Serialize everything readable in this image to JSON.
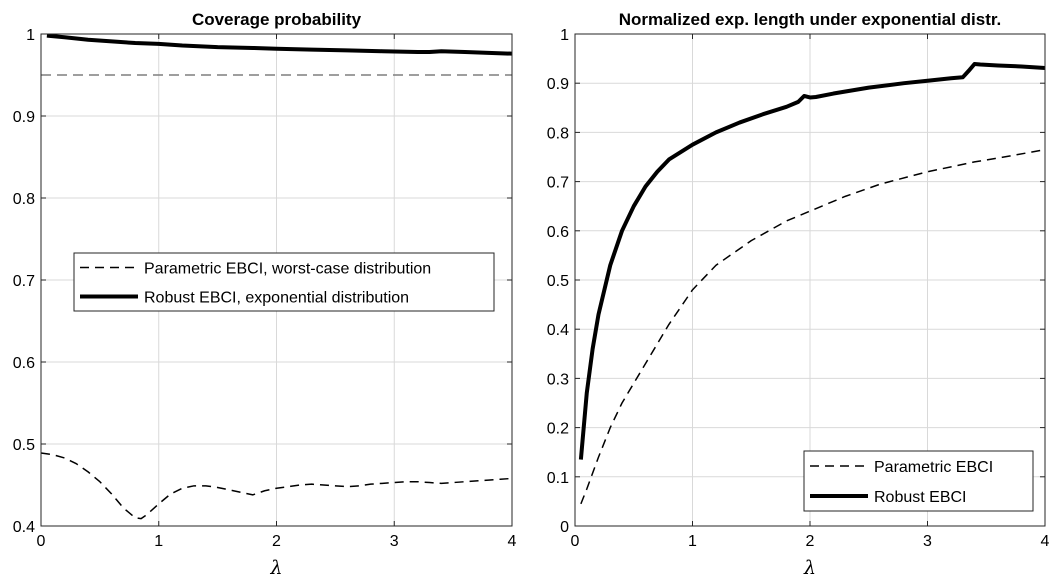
{
  "chart_data": [
    {
      "type": "line",
      "title": "Coverage probability",
      "xlabel": "λ",
      "ylabel": "",
      "xlim": [
        0,
        4
      ],
      "ylim": [
        0.4,
        1
      ],
      "xticks": [
        0,
        1,
        2,
        3,
        4
      ],
      "xtick_labels": [
        "0",
        "1",
        "2",
        "3",
        "4"
      ],
      "yticks": [
        0.4,
        0.5,
        0.6,
        0.7,
        0.8,
        0.9,
        1
      ],
      "ytick_labels": [
        "0.4",
        "0.5",
        "0.6",
        "0.7",
        "0.8",
        "0.9",
        "1"
      ],
      "grid": true,
      "legend_position": "center",
      "reference_line": {
        "y": 0.95,
        "style": "dashed",
        "color": "#7f7f7f"
      },
      "series": [
        {
          "name": "Parametric EBCI, worst-case distribution",
          "style": "dashed",
          "color": "#000000",
          "x": [
            0.0,
            0.1,
            0.2,
            0.3,
            0.4,
            0.5,
            0.6,
            0.7,
            0.8,
            0.85,
            0.9,
            1.0,
            1.1,
            1.2,
            1.3,
            1.4,
            1.5,
            1.6,
            1.7,
            1.8,
            1.9,
            2.0,
            2.1,
            2.2,
            2.3,
            2.4,
            2.5,
            2.6,
            2.7,
            2.8,
            2.9,
            3.0,
            3.1,
            3.2,
            3.3,
            3.4,
            3.5,
            3.6,
            3.7,
            3.8,
            3.9,
            4.0
          ],
          "y": [
            0.489,
            0.487,
            0.483,
            0.476,
            0.466,
            0.454,
            0.439,
            0.422,
            0.41,
            0.409,
            0.414,
            0.427,
            0.439,
            0.446,
            0.449,
            0.449,
            0.447,
            0.444,
            0.441,
            0.438,
            0.443,
            0.446,
            0.448,
            0.45,
            0.451,
            0.45,
            0.449,
            0.448,
            0.449,
            0.451,
            0.452,
            0.453,
            0.454,
            0.454,
            0.453,
            0.452,
            0.453,
            0.454,
            0.455,
            0.456,
            0.457,
            0.458
          ]
        },
        {
          "name": "Robust EBCI, exponential distribution",
          "style": "solid",
          "color": "#000000",
          "x": [
            0.05,
            0.2,
            0.4,
            0.6,
            0.8,
            1.0,
            1.2,
            1.5,
            1.8,
            2.0,
            2.3,
            2.6,
            2.9,
            3.2,
            3.3,
            3.4,
            3.6,
            3.8,
            4.0
          ],
          "y": [
            0.998,
            0.996,
            0.993,
            0.991,
            0.989,
            0.988,
            0.986,
            0.984,
            0.983,
            0.982,
            0.981,
            0.98,
            0.979,
            0.978,
            0.978,
            0.979,
            0.978,
            0.977,
            0.976
          ]
        }
      ]
    },
    {
      "type": "line",
      "title": "Normalized exp. length under exponential distr.",
      "xlabel": "λ",
      "ylabel": "",
      "xlim": [
        0,
        4
      ],
      "ylim": [
        0,
        1
      ],
      "xticks": [
        0,
        1,
        2,
        3,
        4
      ],
      "xtick_labels": [
        "0",
        "1",
        "2",
        "3",
        "4"
      ],
      "yticks": [
        0,
        0.1,
        0.2,
        0.3,
        0.4,
        0.5,
        0.6,
        0.7,
        0.8,
        0.9,
        1
      ],
      "ytick_labels": [
        "0",
        "0.1",
        "0.2",
        "0.3",
        "0.4",
        "0.5",
        "0.6",
        "0.7",
        "0.8",
        "0.9",
        "1"
      ],
      "grid": true,
      "legend_position": "bottom-right",
      "series": [
        {
          "name": "Parametric EBCI",
          "style": "dashed",
          "color": "#000000",
          "x": [
            0.05,
            0.1,
            0.2,
            0.3,
            0.4,
            0.5,
            0.6,
            0.8,
            1.0,
            1.2,
            1.5,
            1.8,
            2.0,
            2.3,
            2.6,
            3.0,
            3.4,
            3.7,
            4.0
          ],
          "y": [
            0.045,
            0.075,
            0.14,
            0.2,
            0.25,
            0.29,
            0.33,
            0.41,
            0.48,
            0.53,
            0.58,
            0.62,
            0.64,
            0.67,
            0.695,
            0.72,
            0.74,
            0.752,
            0.765
          ]
        },
        {
          "name": "Robust EBCI",
          "style": "solid",
          "color": "#000000",
          "x": [
            0.05,
            0.1,
            0.15,
            0.2,
            0.3,
            0.4,
            0.5,
            0.6,
            0.7,
            0.8,
            0.9,
            1.0,
            1.2,
            1.4,
            1.6,
            1.8,
            1.9,
            1.95,
            2.0,
            2.05,
            2.2,
            2.5,
            2.8,
            3.0,
            3.2,
            3.3,
            3.35,
            3.4,
            3.45,
            3.6,
            3.8,
            4.0
          ],
          "y": [
            0.135,
            0.27,
            0.36,
            0.43,
            0.53,
            0.6,
            0.65,
            0.69,
            0.72,
            0.745,
            0.76,
            0.775,
            0.8,
            0.82,
            0.837,
            0.852,
            0.862,
            0.874,
            0.871,
            0.872,
            0.879,
            0.891,
            0.9,
            0.905,
            0.91,
            0.912,
            0.925,
            0.939,
            0.938,
            0.936,
            0.934,
            0.931
          ]
        }
      ]
    }
  ]
}
